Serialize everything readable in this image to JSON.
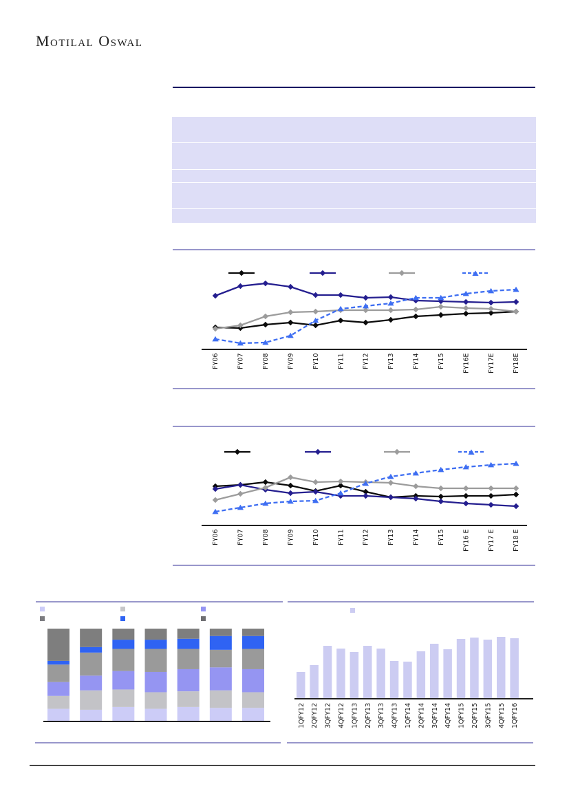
{
  "header": {
    "logo_text": "Motilal Oswal",
    "rule_color": "#181262"
  },
  "summary_table": {
    "fill": "#dedef7",
    "rows": [
      "",
      "",
      "",
      "",
      ""
    ]
  },
  "separators": {
    "color": "#9896cb"
  },
  "footer": {
    "rule_color": "#454545"
  },
  "chart_data": [
    {
      "id": "annual-line-1",
      "type": "line",
      "title": "",
      "categories": [
        "FY06",
        "FY07",
        "FY08",
        "FY09",
        "FY10",
        "FY11",
        "FY12",
        "FY13",
        "FY14",
        "FY15",
        "FY16E",
        "FY17E",
        "FY18E"
      ],
      "legend_labels": [
        "",
        "",
        "",
        ""
      ],
      "legend_position": "top",
      "grid": false,
      "ylim": [
        0,
        110
      ],
      "series": [
        {
          "name": "black-solid",
          "color": "#0b0b0b",
          "marker": "diamond",
          "dashed": false,
          "values": [
            32,
            31,
            36,
            39,
            35,
            42,
            39,
            43,
            48,
            50,
            52,
            53,
            55
          ]
        },
        {
          "name": "navy-solid",
          "color": "#241e8f",
          "marker": "diamond",
          "dashed": false,
          "values": [
            78,
            92,
            96,
            91,
            79,
            79,
            75,
            76,
            71,
            70,
            69,
            68,
            69
          ]
        },
        {
          "name": "gray-solid",
          "color": "#9c9c9c",
          "marker": "diamond",
          "dashed": false,
          "values": [
            30,
            35,
            48,
            54,
            55,
            57,
            57,
            57,
            58,
            62,
            60,
            59,
            55
          ]
        },
        {
          "name": "blue-dashed",
          "color": "#3e6ef2",
          "marker": "triangle",
          "dashed": true,
          "values": [
            15,
            9,
            10,
            20,
            42,
            59,
            63,
            67,
            75,
            75,
            81,
            85,
            87
          ]
        }
      ]
    },
    {
      "id": "annual-line-2",
      "type": "line",
      "title": "",
      "categories": [
        "FY06",
        "FY07",
        "FY08",
        "FY09",
        "FY10",
        "FY11",
        "FY12",
        "FY13",
        "FY14",
        "FY15",
        "FY16 E",
        "FY17 E",
        "FY18 E"
      ],
      "legend_labels": [
        "",
        "",
        "",
        ""
      ],
      "legend_position": "top",
      "grid": false,
      "ylim": [
        0,
        110
      ],
      "series": [
        {
          "name": "black-solid",
          "color": "#0b0b0b",
          "marker": "diamond",
          "dashed": false,
          "values": [
            57,
            59,
            63,
            58,
            50,
            58,
            49,
            41,
            43,
            42,
            43,
            43,
            45
          ]
        },
        {
          "name": "navy-solid",
          "color": "#241e8f",
          "marker": "diamond",
          "dashed": false,
          "values": [
            53,
            59,
            52,
            47,
            49,
            43,
            43,
            41,
            39,
            35,
            32,
            30,
            28
          ]
        },
        {
          "name": "gray-solid",
          "color": "#9c9c9c",
          "marker": "diamond",
          "dashed": false,
          "values": [
            37,
            46,
            55,
            70,
            63,
            64,
            63,
            62,
            57,
            54,
            54,
            54,
            54
          ]
        },
        {
          "name": "blue-dashed",
          "color": "#3e6ef2",
          "marker": "triangle",
          "dashed": true,
          "values": [
            20,
            26,
            32,
            35,
            36,
            47,
            61,
            71,
            76,
            81,
            85,
            88,
            90
          ]
        }
      ]
    },
    {
      "id": "stacked-bar",
      "type": "bar",
      "stacked": true,
      "title": "",
      "categories": [
        "",
        "",
        "",
        "",
        "",
        "",
        ""
      ],
      "legend_labels": [
        "",
        "",
        "",
        "",
        "",
        ""
      ],
      "legend_swatches": [
        "#ccccf7",
        "#c6c6c9",
        "#9595f2",
        "#7c7c80",
        "#2f63f3",
        "#6f6f72"
      ],
      "grid": false,
      "ylim": [
        0,
        100
      ],
      "series": [
        {
          "name": "segment-lavender",
          "color": "#ccccf7",
          "values": [
            13,
            12,
            15,
            13,
            15,
            14,
            14
          ]
        },
        {
          "name": "segment-lightgray",
          "color": "#c3c3c7",
          "values": [
            14,
            21,
            19,
            18,
            17,
            19,
            17
          ]
        },
        {
          "name": "segment-periwinkle",
          "color": "#9595f2",
          "values": [
            15,
            16,
            20,
            22,
            24,
            25,
            25
          ]
        },
        {
          "name": "segment-mediumgray",
          "color": "#9a9a9a",
          "values": [
            19,
            25,
            24,
            25,
            22,
            19,
            22
          ]
        },
        {
          "name": "segment-blue",
          "color": "#2f63f3",
          "values": [
            4,
            6,
            10,
            10,
            11,
            15,
            14
          ]
        },
        {
          "name": "segment-darkgray",
          "color": "#7e7e7e",
          "values": [
            35,
            20,
            12,
            12,
            11,
            8,
            8
          ]
        }
      ]
    },
    {
      "id": "quarterly-bar",
      "type": "bar",
      "stacked": false,
      "title": "",
      "categories": [
        "1QFY12",
        "2QFY12",
        "3QFY12",
        "4QFY12",
        "1QFY13",
        "2QFY13",
        "3QFY13",
        "4QFY13",
        "1QFY14",
        "2QFY14",
        "3QFY14",
        "4QFY14",
        "1QFY15",
        "2QFY15",
        "3QFY15",
        "4QFY15",
        "1QFY16"
      ],
      "legend_labels": [
        ""
      ],
      "legend_swatches": [
        "#ccccf2"
      ],
      "grid": false,
      "ylim": [
        0,
        100
      ],
      "series": [
        {
          "name": "quarterly-lavender",
          "color": "#ccccf2",
          "values": [
            38,
            48,
            76,
            72,
            67,
            76,
            72,
            54,
            53,
            68,
            79,
            71,
            86,
            88,
            85,
            89,
            87
          ]
        }
      ]
    }
  ]
}
